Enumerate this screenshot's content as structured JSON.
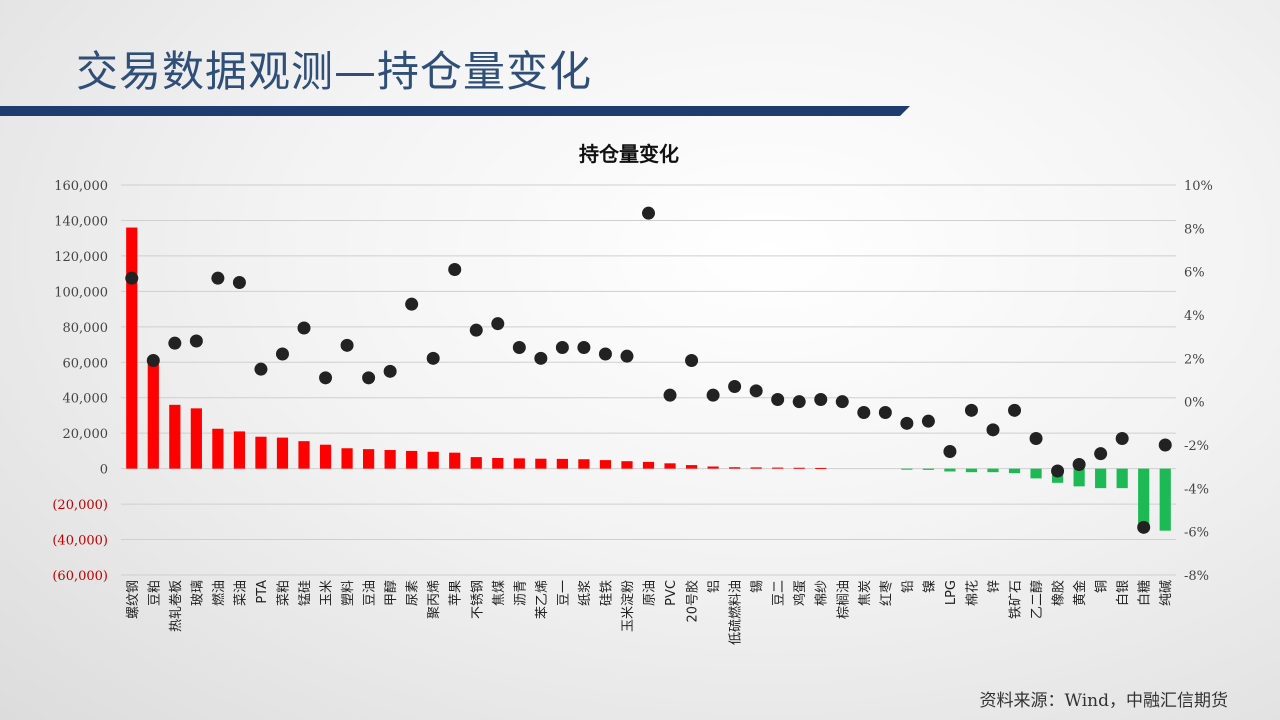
{
  "slide": {
    "title": "交易数据观测—持仓量变化",
    "source": "资料来源：Wind，中融汇信期货",
    "title_bar_color": "#1f3c6e"
  },
  "chart_data": {
    "type": "bar",
    "title": "持仓量变化",
    "colors": {
      "positive": "#ff0000",
      "negative": "#1db954",
      "dot": "#222222"
    },
    "ylim_left": [
      -60000,
      160000
    ],
    "ylim_right": [
      -8,
      10
    ],
    "left_ticks": [
      160000,
      140000,
      120000,
      100000,
      80000,
      60000,
      40000,
      20000,
      0,
      -20000,
      -40000,
      -60000
    ],
    "left_tick_labels": [
      "160,000",
      "140,000",
      "120,000",
      "100,000",
      "80,000",
      "60,000",
      "40,000",
      "20,000",
      "0",
      "(20,000)",
      "(40,000)",
      "(60,000)"
    ],
    "right_ticks": [
      10,
      8,
      6,
      4,
      2,
      0,
      -2,
      -4,
      -6,
      -8
    ],
    "right_tick_labels": [
      "10%",
      "8%",
      "6%",
      "4%",
      "2%",
      "0%",
      "-2%",
      "-4%",
      "-6%",
      "-8%"
    ],
    "categories": [
      "螺纹钢",
      "豆粕",
      "热轧卷板",
      "玻璃",
      "燃油",
      "菜油",
      "PTA",
      "菜粕",
      "锰硅",
      "玉米",
      "塑料",
      "豆油",
      "甲醇",
      "尿素",
      "聚丙烯",
      "苹果",
      "不锈钢",
      "焦煤",
      "沥青",
      "苯乙烯",
      "豆一",
      "纸浆",
      "硅铁",
      "玉米淀粉",
      "原油",
      "PVC",
      "20号胶",
      "铝",
      "低硫燃料油",
      "锡",
      "豆二",
      "鸡蛋",
      "棉纱",
      "棕榈油",
      "焦炭",
      "红枣",
      "铅",
      "镍",
      "LPG",
      "棉花",
      "锌",
      "铁矿石",
      "乙二醇",
      "橡胶",
      "黄金",
      "铜",
      "白银",
      "白糖",
      "纯碱"
    ],
    "series": [
      {
        "values": [
          136000,
          62000,
          36000,
          34000,
          22500,
          21000,
          18000,
          17500,
          15500,
          13500,
          11500,
          11000,
          10500,
          10000,
          9500,
          9000,
          6500,
          6000,
          5800,
          5600,
          5500,
          5300,
          4800,
          4200,
          3800,
          3000,
          2000,
          1200,
          800,
          700,
          600,
          500,
          400,
          0,
          0,
          0,
          -600,
          -700,
          -1600,
          -2000,
          -2000,
          -2500,
          -5500,
          -8000,
          -10000,
          -11000,
          -11000,
          -32000,
          -35000
        ]
      },
      {
        "values": [
          5.7,
          1.9,
          2.7,
          2.8,
          5.7,
          5.5,
          1.5,
          2.2,
          3.4,
          1.1,
          2.6,
          1.1,
          1.4,
          4.5,
          2.0,
          6.1,
          3.3,
          3.6,
          2.5,
          2.0,
          2.5,
          2.5,
          2.2,
          2.1,
          8.7,
          0.3,
          1.9,
          0.3,
          0.7,
          0.5,
          0.1,
          0.0,
          0.1,
          0.0,
          -0.5,
          -0.5,
          -1.0,
          -0.9,
          -2.3,
          -0.4,
          -1.3,
          -0.4,
          -1.7,
          -3.2,
          -2.9,
          -2.4,
          -1.7,
          -5.8,
          -2.0
        ]
      }
    ]
  }
}
